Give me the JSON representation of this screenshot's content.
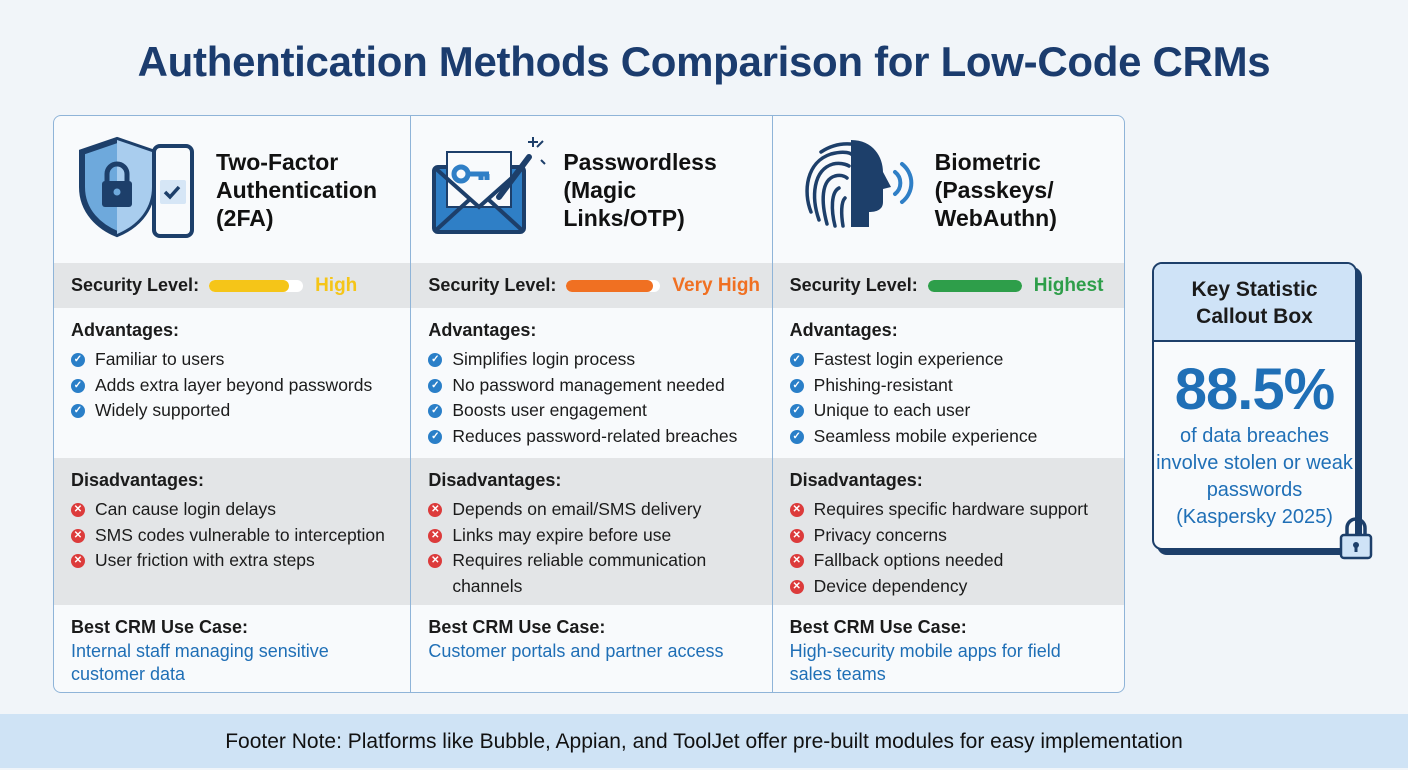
{
  "title": "Authentication Methods Comparison for Low-Code CRMs",
  "labels": {
    "security": "Security Level:",
    "advantages": "Advantages:",
    "disadvantages": "Disadvantages:",
    "best": "Best CRM Use Case:"
  },
  "methods": [
    {
      "name": "Two-Factor Authentication (2FA)",
      "icon": "shield-phone-icon",
      "level": "High",
      "level_fraction": 0.85,
      "color": "#f5c518",
      "advantages": [
        "Familiar to users",
        "Adds extra layer beyond passwords",
        "Widely supported"
      ],
      "disadvantages": [
        "Can cause login delays",
        "SMS codes vulnerable to interception",
        "User friction with extra steps"
      ],
      "best": "Internal staff managing sensitive customer data"
    },
    {
      "name": "Passwordless (Magic Links/OTP)",
      "icon": "envelope-key-icon",
      "level": "Very High",
      "level_fraction": 0.92,
      "color": "#f07022",
      "advantages": [
        "Simplifies login process",
        "No password management needed",
        "Boosts user engagement",
        "Reduces password-related breaches"
      ],
      "disadvantages": [
        "Depends on email/SMS delivery",
        "Links may expire before use",
        "Requires reliable communication channels"
      ],
      "best": "Customer portals and partner access"
    },
    {
      "name": "Biometric (Passkeys/ WebAuthn)",
      "icon": "fingerprint-face-icon",
      "level": "Highest",
      "level_fraction": 1.0,
      "color": "#2e9e4a",
      "advantages": [
        "Fastest login experience",
        "Phishing-resistant",
        "Unique to each user",
        "Seamless mobile experience"
      ],
      "disadvantages": [
        "Requires specific hardware support",
        "Privacy concerns",
        "Fallback options needed",
        "Device dependency"
      ],
      "best": "High-security mobile apps for field sales teams"
    }
  ],
  "callout": {
    "title": "Key Statistic Callout Box",
    "value": "88.5%",
    "text": "of data breaches involve stolen or weak passwords (Kaspersky 2025)"
  },
  "footer": "Footer Note: Platforms like Bubble, Appian, and ToolJet offer pre-built modules for easy implementation"
}
